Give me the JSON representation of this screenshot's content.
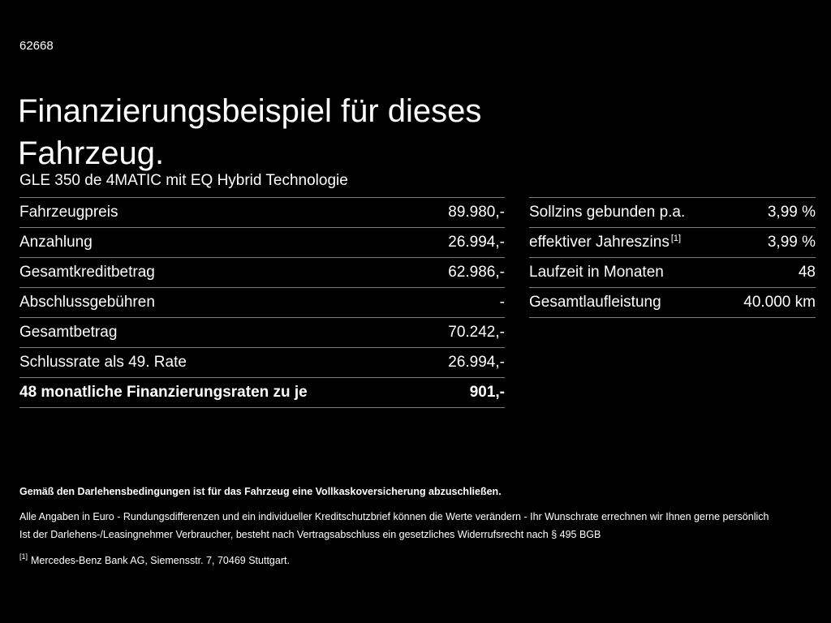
{
  "page": {
    "doc_id": "62668",
    "title_line1": "Finanzierungsbeispiel für dieses",
    "title_line2": "Fahrzeug.",
    "subtitle": "GLE 350 de 4MATIC mit EQ Hybrid Technologie"
  },
  "left_table": {
    "rows": [
      {
        "label": "Fahrzeugpreis",
        "value": "89.980,-"
      },
      {
        "label": "Anzahlung",
        "value": "26.994,-"
      },
      {
        "label": "Gesamtkreditbetrag",
        "value": "62.986,-"
      },
      {
        "label": "Abschlussgebühren",
        "value": "-"
      },
      {
        "label": "Gesamtbetrag",
        "value": "70.242,-"
      },
      {
        "label": "Schlussrate als 49. Rate",
        "value": "26.994,-"
      },
      {
        "label": "48 monatliche Finanzierungsraten zu je",
        "value": "901,-"
      }
    ]
  },
  "right_table": {
    "rows": [
      {
        "label": "Sollzins gebunden p.a.",
        "value": "3,99 %"
      },
      {
        "label": "effektiver Jahreszins",
        "note_ref": "[1]",
        "value": "3,99 %"
      },
      {
        "label": "Laufzeit in Monaten",
        "value": "48"
      },
      {
        "label": "Gesamtlaufleistung",
        "value": "40.000 km"
      }
    ]
  },
  "footer": {
    "bold_note": "Gemäß den Darlehensbedingungen ist für das Fahrzeug eine Vollkaskoversicherung abzuschließen.",
    "line1": "Alle Angaben in Euro - Rundungsdifferenzen und ein individueller Kreditschutzbrief können die Werte verändern - Ihr Wunschrate errechnen wir Ihnen gerne persönlich",
    "line2": "Ist der Darlehens-/Leasingnehmer Verbraucher, besteht nach Vertragsabschluss ein gesetzliches Widerrufsrecht nach § 495 BGB",
    "footnote_ref": "[1]",
    "footnote_text": "Mercedes-Benz Bank AG, Siemensstr. 7, 70469 Stuttgart."
  },
  "colors": {
    "background": "#000000",
    "text": "#ffffff",
    "divider": "#7d7d7d"
  }
}
